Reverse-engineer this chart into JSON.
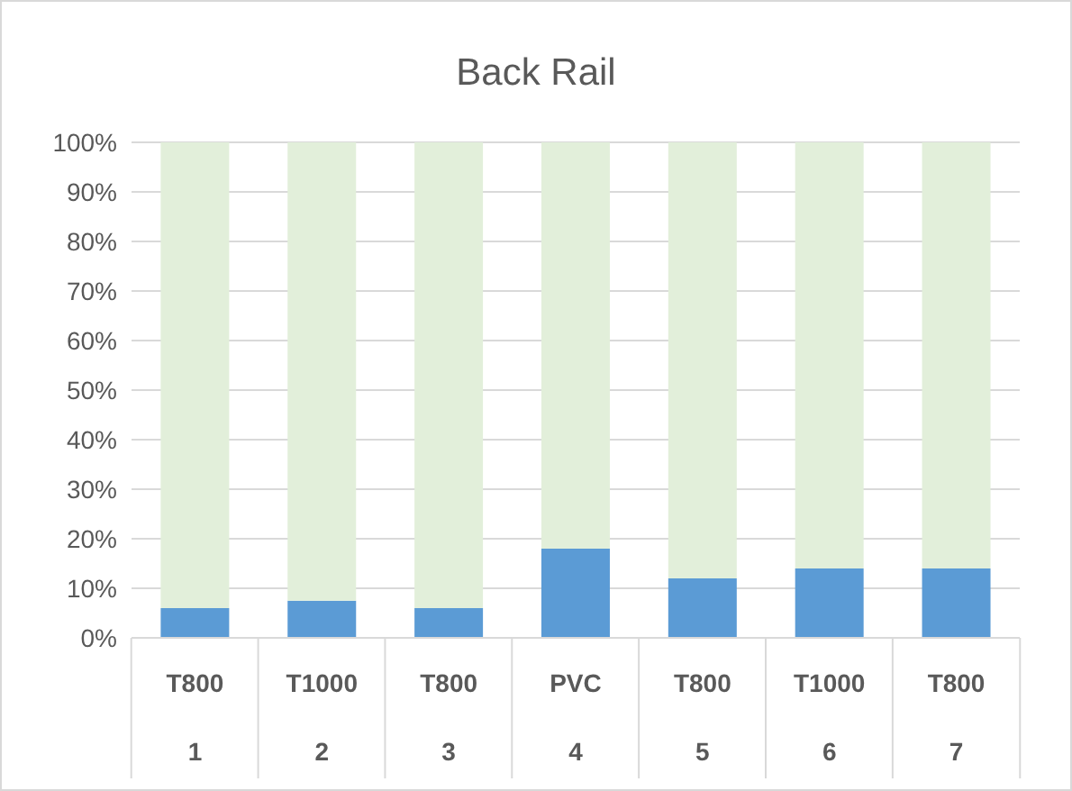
{
  "chart_data": {
    "type": "bar",
    "title": "Back Rail",
    "stacked": true,
    "categories": [
      "T800\n1",
      "T1000\n2",
      "T800\n3",
      "PVC\n4",
      "T800\n5",
      "T1000\n6",
      "T800\n7"
    ],
    "series": [
      {
        "color": "#5b9bd5",
        "values": [
          6,
          7.5,
          6,
          18,
          12,
          14,
          14
        ]
      },
      {
        "color": "#e2efda",
        "values": [
          94,
          92.5,
          94,
          82,
          88,
          86,
          86
        ]
      }
    ],
    "ylim": [
      0,
      100
    ],
    "yticks": [
      {
        "value": 0,
        "label": "0%"
      },
      {
        "value": 10,
        "label": "10%"
      },
      {
        "value": 20,
        "label": "20%"
      },
      {
        "value": 30,
        "label": "30%"
      },
      {
        "value": 40,
        "label": "40%"
      },
      {
        "value": 50,
        "label": "50%"
      },
      {
        "value": 60,
        "label": "60%"
      },
      {
        "value": 70,
        "label": "70%"
      },
      {
        "value": 80,
        "label": "80%"
      },
      {
        "value": 90,
        "label": "90%"
      },
      {
        "value": 100,
        "label": "100%"
      }
    ],
    "grid": "y",
    "legend": false
  }
}
